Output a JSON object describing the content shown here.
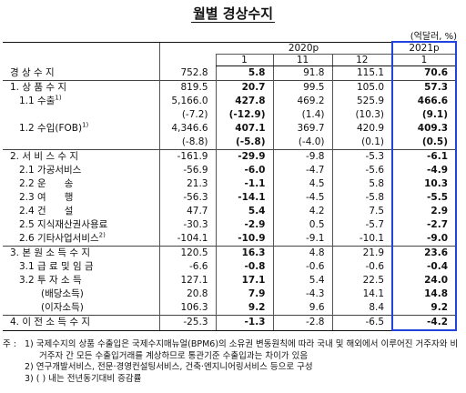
{
  "title": "월별 경상수지",
  "unit": "(억달러, %)",
  "header": {
    "year_2020": "2020p",
    "year_2021": "2021p",
    "months": [
      "1",
      "11",
      "12",
      "1"
    ]
  },
  "rows": [
    {
      "label": "경 상 수 지",
      "values": [
        "752.8",
        "5.8",
        "91.8",
        "115.1",
        "70.6"
      ]
    },
    {
      "label": "1. 상 품 수 지",
      "values": [
        "819.5",
        "20.7",
        "99.5",
        "105.0",
        "57.3"
      ]
    },
    {
      "label": "1.1 수출",
      "note": "1)",
      "values": [
        "5,166.0",
        "427.8",
        "469.2",
        "525.9",
        "466.6"
      ]
    },
    {
      "values": [
        "(-7.2)",
        "(-12.9)",
        "(1.4)",
        "(10.3)",
        "(9.1)"
      ]
    },
    {
      "label": "1.2 수입(FOB)",
      "note": "1)",
      "values": [
        "4,346.6",
        "407.1",
        "369.7",
        "420.9",
        "409.3"
      ]
    },
    {
      "values": [
        "(-8.8)",
        "(-5.8)",
        "(-4.0)",
        "(0.1)",
        "(0.5)"
      ]
    },
    {
      "label": "2. 서 비 스 수 지",
      "values": [
        "-161.9",
        "-29.9",
        "-9.8",
        "-5.3",
        "-6.1"
      ]
    },
    {
      "label": "2.1 가공서비스",
      "values": [
        "-56.9",
        "-6.0",
        "-4.7",
        "-5.6",
        "-4.9"
      ]
    },
    {
      "label": "2.2 운      송",
      "values": [
        "21.3",
        "-1.1",
        "4.5",
        "5.8",
        "10.3"
      ]
    },
    {
      "label": "2.3 여      행",
      "values": [
        "-56.3",
        "-14.1",
        "-4.5",
        "-5.8",
        "-5.5"
      ]
    },
    {
      "label": "2.4 건      설",
      "values": [
        "47.7",
        "5.4",
        "4.2",
        "7.5",
        "2.9"
      ]
    },
    {
      "label": "2.5 지식재산권사용료",
      "values": [
        "-30.3",
        "-2.9",
        "0.5",
        "-5.7",
        "-2.7"
      ]
    },
    {
      "label": "2.6 기타사업서비스",
      "note": "2)",
      "values": [
        "-104.1",
        "-10.9",
        "-9.1",
        "-10.1",
        "-9.0"
      ]
    },
    {
      "label": "3. 본 원 소 득 수 지",
      "values": [
        "120.5",
        "16.3",
        "4.8",
        "21.9",
        "23.6"
      ]
    },
    {
      "label": "3.1 급 료 및 임 금",
      "values": [
        "-6.6",
        "-0.8",
        "-0.6",
        "-0.6",
        "-0.4"
      ]
    },
    {
      "label": "3.2 투 자 소 득",
      "values": [
        "127.1",
        "17.1",
        "5.4",
        "22.5",
        "24.0"
      ]
    },
    {
      "label": "(배당소득)",
      "values": [
        "20.8",
        "7.9",
        "-4.3",
        "14.1",
        "14.8"
      ]
    },
    {
      "label": "(이자소득)",
      "values": [
        "106.3",
        "9.2",
        "9.6",
        "8.4",
        "9.2"
      ]
    },
    {
      "label": "4. 이 전 소 득 수 지",
      "values": [
        "-25.3",
        "-1.3",
        "-2.8",
        "-6.5",
        "-4.2"
      ]
    }
  ],
  "notes": {
    "prefix": "주 :",
    "items": [
      "1) 국제수지의 상품 수출입은 국제수지매뉴얼(BPM6)의 소유권 변동원칙에 따라 국내 및 해외에서 이루어진 거주자와 비거주자 간 모든 수출입거래를 계상하므로 통관기준 수출입과는 차이가 있음",
      "2) 연구개발서비스, 전문·경영컨설팅서비스, 건축·엔지니어링서비스 등으로 구성",
      "3) ( ) 내는 전년동기대비 증감률"
    ]
  }
}
